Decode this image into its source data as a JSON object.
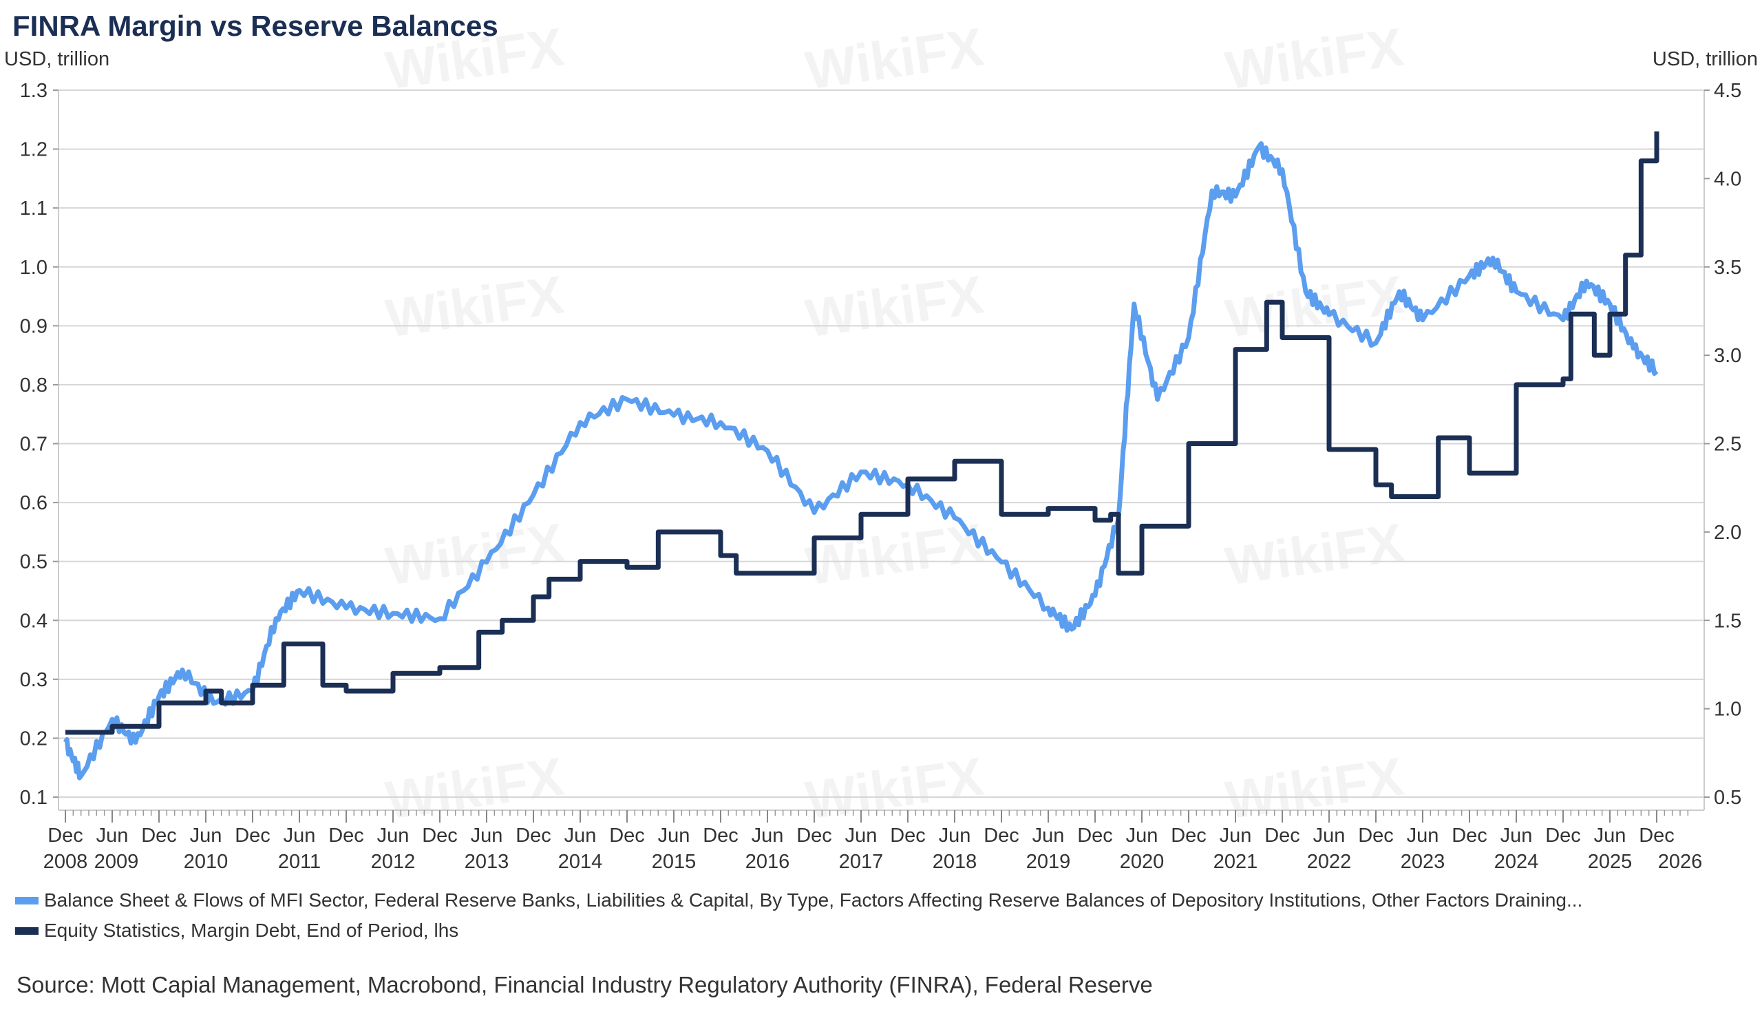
{
  "watermark": "WikiFX",
  "chart_data": {
    "type": "line",
    "title": "FINRA Margin vs Reserve Balances",
    "ylabel_left": "USD, trillion",
    "ylabel_right": "USD, trillion",
    "ylim_left": [
      0.1,
      1.3
    ],
    "ylim_right": [
      0.5,
      4.5
    ],
    "yticks_left": [
      "0.1",
      "0.2",
      "0.3",
      "0.4",
      "0.5",
      "0.6",
      "0.7",
      "0.8",
      "0.9",
      "1.0",
      "1.1",
      "1.2",
      "1.3"
    ],
    "yticks_right": [
      "0.5",
      "1.0",
      "1.5",
      "2.0",
      "2.5",
      "3.0",
      "3.5",
      "4.0",
      "4.5"
    ],
    "grid": true,
    "legend_position": "bottom",
    "xticks": [
      {
        "date": "2008-12",
        "label": "Dec"
      },
      {
        "date": "2009-06",
        "label": "Jun"
      },
      {
        "date": "2009-12",
        "label": "Dec"
      },
      {
        "date": "2010-06",
        "label": "Jun"
      },
      {
        "date": "2010-12",
        "label": "Dec"
      },
      {
        "date": "2011-06",
        "label": "Jun"
      },
      {
        "date": "2011-12",
        "label": "Dec"
      },
      {
        "date": "2012-06",
        "label": "Jun"
      },
      {
        "date": "2012-12",
        "label": "Dec"
      },
      {
        "date": "2013-06",
        "label": "Jun"
      },
      {
        "date": "2013-12",
        "label": "Dec"
      },
      {
        "date": "2014-06",
        "label": "Jun"
      },
      {
        "date": "2014-12",
        "label": "Dec"
      },
      {
        "date": "2015-06",
        "label": "Jun"
      },
      {
        "date": "2015-12",
        "label": "Dec"
      },
      {
        "date": "2016-06",
        "label": "Jun"
      },
      {
        "date": "2016-12",
        "label": "Dec"
      },
      {
        "date": "2017-06",
        "label": "Jun"
      },
      {
        "date": "2017-12",
        "label": "Dec"
      },
      {
        "date": "2018-06",
        "label": "Jun"
      },
      {
        "date": "2018-12",
        "label": "Dec"
      },
      {
        "date": "2019-06",
        "label": "Jun"
      },
      {
        "date": "2019-12",
        "label": "Dec"
      },
      {
        "date": "2020-06",
        "label": "Jun"
      },
      {
        "date": "2020-12",
        "label": "Dec"
      },
      {
        "date": "2021-06",
        "label": "Jun"
      },
      {
        "date": "2021-12",
        "label": "Dec"
      },
      {
        "date": "2022-06",
        "label": "Jun"
      },
      {
        "date": "2022-12",
        "label": "Dec"
      },
      {
        "date": "2023-06",
        "label": "Jun"
      },
      {
        "date": "2023-12",
        "label": "Dec"
      },
      {
        "date": "2024-06",
        "label": "Jun"
      },
      {
        "date": "2024-12",
        "label": "Dec"
      },
      {
        "date": "2025-06",
        "label": "Jun"
      },
      {
        "date": "2025-12",
        "label": "Dec"
      }
    ],
    "xyear_labels": [
      {
        "date": "2008-12",
        "label": "2008"
      },
      {
        "date": "2009-06",
        "label": "2009"
      },
      {
        "date": "2010-06",
        "label": "2010"
      },
      {
        "date": "2011-06",
        "label": "2011"
      },
      {
        "date": "2012-06",
        "label": "2012"
      },
      {
        "date": "2013-06",
        "label": "2013"
      },
      {
        "date": "2014-06",
        "label": "2014"
      },
      {
        "date": "2015-06",
        "label": "2015"
      },
      {
        "date": "2016-06",
        "label": "2016"
      },
      {
        "date": "2017-06",
        "label": "2017"
      },
      {
        "date": "2018-06",
        "label": "2018"
      },
      {
        "date": "2019-06",
        "label": "2019"
      },
      {
        "date": "2020-06",
        "label": "2020"
      },
      {
        "date": "2021-06",
        "label": "2021"
      },
      {
        "date": "2022-06",
        "label": "2022"
      },
      {
        "date": "2023-06",
        "label": "2023"
      },
      {
        "date": "2024-06",
        "label": "2024"
      },
      {
        "date": "2025-06",
        "label": "2025"
      },
      {
        "date": "2026-03",
        "label": "2026"
      }
    ],
    "series": [
      {
        "name": "Balance Sheet & Flows of MFI Sector, Federal Reserve Banks, Liabilities & Capital, By Type, Factors Affecting Reserve Balances of Depository Institutions, Other Factors Draining...",
        "axis": "right",
        "color": "#5b9ef0",
        "points": [
          [
            "2008-12",
            0.81
          ],
          [
            "2009-02",
            0.62
          ],
          [
            "2009-06",
            0.94
          ],
          [
            "2009-09",
            0.81
          ],
          [
            "2009-12",
            1.07
          ],
          [
            "2010-03",
            1.22
          ],
          [
            "2010-07",
            1.03
          ],
          [
            "2010-12",
            1.1
          ],
          [
            "2011-03",
            1.51
          ],
          [
            "2011-06",
            1.67
          ],
          [
            "2011-12",
            1.57
          ],
          [
            "2012-06",
            1.54
          ],
          [
            "2012-12",
            1.51
          ],
          [
            "2013-06",
            1.83
          ],
          [
            "2013-12",
            2.21
          ],
          [
            "2014-06",
            2.62
          ],
          [
            "2014-12",
            2.75
          ],
          [
            "2015-06",
            2.66
          ],
          [
            "2015-12",
            2.62
          ],
          [
            "2016-06",
            2.46
          ],
          [
            "2016-12",
            2.11
          ],
          [
            "2017-06",
            2.34
          ],
          [
            "2017-12",
            2.27
          ],
          [
            "2018-06",
            2.08
          ],
          [
            "2018-12",
            1.83
          ],
          [
            "2019-06",
            1.57
          ],
          [
            "2019-09",
            1.45
          ],
          [
            "2019-12",
            1.64
          ],
          [
            "2020-03",
            2.08
          ],
          [
            "2020-05",
            3.29
          ],
          [
            "2020-08",
            2.75
          ],
          [
            "2020-12",
            3.1
          ],
          [
            "2021-03",
            3.93
          ],
          [
            "2021-06",
            3.9
          ],
          [
            "2021-09",
            4.18
          ],
          [
            "2021-12",
            4.05
          ],
          [
            "2022-03",
            3.36
          ],
          [
            "2022-06",
            3.23
          ],
          [
            "2022-12",
            3.07
          ],
          [
            "2023-03",
            3.36
          ],
          [
            "2023-06",
            3.2
          ],
          [
            "2023-12",
            3.45
          ],
          [
            "2024-03",
            3.55
          ],
          [
            "2024-06",
            3.36
          ],
          [
            "2024-12",
            3.2
          ],
          [
            "2025-03",
            3.42
          ],
          [
            "2025-06",
            3.29
          ],
          [
            "2025-09",
            3.04
          ],
          [
            "2025-12",
            2.91
          ]
        ]
      },
      {
        "name": "Equity Statistics, Margin Debt, End of Period, lhs",
        "axis": "left",
        "color": "#1b2f55",
        "points": [
          [
            "2008-12",
            0.21
          ],
          [
            "2009-06",
            0.22
          ],
          [
            "2009-12",
            0.26
          ],
          [
            "2010-06",
            0.28
          ],
          [
            "2010-08",
            0.26
          ],
          [
            "2010-12",
            0.29
          ],
          [
            "2011-04",
            0.36
          ],
          [
            "2011-09",
            0.29
          ],
          [
            "2011-12",
            0.28
          ],
          [
            "2012-06",
            0.31
          ],
          [
            "2012-12",
            0.32
          ],
          [
            "2013-05",
            0.38
          ],
          [
            "2013-08",
            0.4
          ],
          [
            "2013-12",
            0.44
          ],
          [
            "2014-02",
            0.47
          ],
          [
            "2014-06",
            0.5
          ],
          [
            "2014-12",
            0.49
          ],
          [
            "2015-04",
            0.55
          ],
          [
            "2015-12",
            0.51
          ],
          [
            "2016-02",
            0.48
          ],
          [
            "2016-12",
            0.54
          ],
          [
            "2017-06",
            0.58
          ],
          [
            "2017-12",
            0.64
          ],
          [
            "2018-06",
            0.67
          ],
          [
            "2018-12",
            0.58
          ],
          [
            "2019-06",
            0.59
          ],
          [
            "2019-12",
            0.57
          ],
          [
            "2020-02",
            0.58
          ],
          [
            "2020-03",
            0.48
          ],
          [
            "2020-06",
            0.56
          ],
          [
            "2020-12",
            0.7
          ],
          [
            "2021-06",
            0.86
          ],
          [
            "2021-10",
            0.94
          ],
          [
            "2021-12",
            0.88
          ],
          [
            "2022-06",
            0.69
          ],
          [
            "2022-12",
            0.63
          ],
          [
            "2023-02",
            0.61
          ],
          [
            "2023-08",
            0.71
          ],
          [
            "2023-12",
            0.65
          ],
          [
            "2024-06",
            0.8
          ],
          [
            "2024-12",
            0.81
          ],
          [
            "2025-01",
            0.92
          ],
          [
            "2025-04",
            0.85
          ],
          [
            "2025-06",
            0.92
          ],
          [
            "2025-08",
            1.02
          ],
          [
            "2025-10",
            1.18
          ],
          [
            "2025-12",
            1.23
          ]
        ]
      }
    ],
    "source": "Source: Mott Capial Management, Macrobond, Financial Industry Regulatory Authority (FINRA), Federal Reserve"
  }
}
